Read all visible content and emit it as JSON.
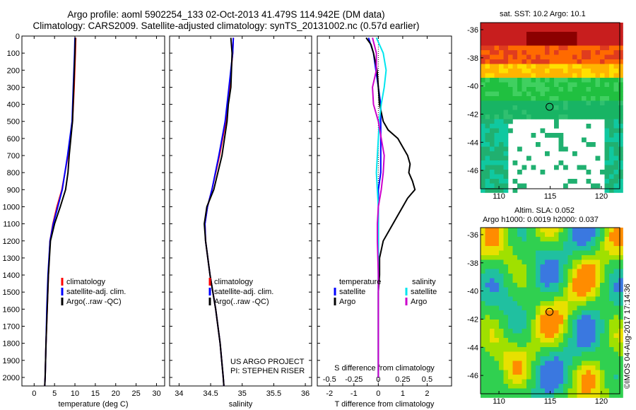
{
  "header": {
    "line1": "Argo profile: aoml 5902254_133 02-Oct-2013 41.479S 114.942E (DM data)",
    "line2": "Climatology: CARS2009. Satellite-adjusted climatology: synTS_20131002.nc (0.57d earlier)"
  },
  "credit": {
    "line1": "US ARGO PROJECT",
    "line2": "PI: STEPHEN RISER"
  },
  "imos_stamp": "©IMOS 04-Aug-2017 17:14:36",
  "map_titles": {
    "sst": "sat. SST: 10.2 Argo: 10.1",
    "sla_line1": "Altim. SLA: 0.052",
    "sla_line2": "Argo h1000: 0.0019 h2000: 0.037"
  },
  "colors": {
    "climatology": "#ff0000",
    "satellite": "#0000ff",
    "argo": "#000000",
    "sal_satellite": "#00e5ee",
    "sal_argo": "#cc00cc"
  },
  "chart_data": [
    {
      "type": "line",
      "id": "temperature",
      "xlabel": "temperature (deg C)",
      "ylabel": "",
      "xlim": [
        -3,
        32
      ],
      "xticks": [
        0,
        5,
        10,
        15,
        20,
        25,
        30
      ],
      "ylim": [
        2050,
        0
      ],
      "yticks": [
        0,
        100,
        200,
        300,
        400,
        500,
        600,
        700,
        800,
        900,
        1000,
        1100,
        1200,
        1300,
        1400,
        1500,
        1600,
        1700,
        1800,
        1900,
        2000
      ],
      "legend": [
        "climatology",
        "satellite-adj. clim.",
        "Argo(..raw -QC)"
      ],
      "series": [
        {
          "name": "climatology",
          "color": "#ff0000",
          "depth": [
            10,
            100,
            300,
            500,
            700,
            900,
            1000,
            1100,
            1200,
            1400,
            1600,
            1800,
            2000,
            2050
          ],
          "values": [
            10.2,
            10.1,
            9.8,
            9.4,
            8.3,
            6.8,
            5.6,
            4.6,
            3.9,
            3.5,
            3.2,
            2.9,
            2.7,
            2.6
          ]
        },
        {
          "name": "satellite-adj. clim.",
          "color": "#0000ff",
          "depth": [
            10,
            100,
            300,
            500,
            700,
            900,
            1000,
            1100,
            1200,
            1400,
            1600,
            1800,
            2000,
            2050
          ],
          "values": [
            10.0,
            9.9,
            9.6,
            9.3,
            8.2,
            6.9,
            5.8,
            4.7,
            3.9,
            3.4,
            3.1,
            2.9,
            2.7,
            2.6
          ]
        },
        {
          "name": "Argo(..raw -QC)",
          "color": "#000000",
          "depth": [
            10,
            100,
            300,
            500,
            700,
            800,
            900,
            1000,
            1100,
            1200,
            1400,
            1600,
            1800,
            2000,
            2050
          ],
          "values": [
            10.1,
            10.0,
            9.7,
            9.4,
            8.6,
            8.3,
            7.7,
            6.4,
            5.0,
            4.0,
            3.5,
            3.2,
            2.9,
            2.7,
            2.6
          ]
        }
      ]
    },
    {
      "type": "line",
      "id": "salinity",
      "xlabel": "salinity",
      "ylabel": "",
      "xlim": [
        33.85,
        36.1
      ],
      "xticks": [
        34,
        34.5,
        35,
        35.5,
        36
      ],
      "ylim": [
        2050,
        0
      ],
      "legend": [
        "climatology",
        "satellite-adj. clim.",
        "Argo(..raw -QC)"
      ],
      "series": [
        {
          "name": "climatology",
          "color": "#ff0000",
          "depth": [
            10,
            100,
            300,
            500,
            700,
            900,
            1000,
            1100,
            1200,
            1400,
            1600,
            1800,
            2000,
            2050
          ],
          "values": [
            34.86,
            34.85,
            34.8,
            34.74,
            34.64,
            34.52,
            34.45,
            34.41,
            34.42,
            34.49,
            34.58,
            34.65,
            34.7,
            34.71
          ]
        },
        {
          "name": "satellite-adj. clim.",
          "color": "#0000ff",
          "depth": [
            10,
            100,
            300,
            500,
            700,
            900,
            1000,
            1100,
            1200,
            1400,
            1600,
            1800,
            2000,
            2050
          ],
          "values": [
            34.86,
            34.85,
            34.79,
            34.73,
            34.63,
            34.52,
            34.45,
            34.41,
            34.42,
            34.49,
            34.58,
            34.65,
            34.7,
            34.71
          ]
        },
        {
          "name": "Argo(..raw -QC)",
          "color": "#000000",
          "depth": [
            10,
            100,
            300,
            400,
            500,
            700,
            900,
            1000,
            1100,
            1200,
            1400,
            1600,
            1800,
            2000,
            2050
          ],
          "values": [
            34.82,
            34.84,
            34.82,
            34.78,
            34.76,
            34.68,
            34.55,
            34.44,
            34.4,
            34.42,
            34.49,
            34.58,
            34.65,
            34.7,
            34.71
          ]
        }
      ]
    },
    {
      "type": "line",
      "id": "differences",
      "xlabel": "T difference from climatology",
      "xlabel_top": "S difference from climatology",
      "ylabel": "",
      "xlim": [
        -2.5,
        3
      ],
      "xticks": [
        -2,
        -1,
        0,
        1,
        2
      ],
      "sxticks": [
        -0.5,
        -0.25,
        0,
        0.25,
        0.5
      ],
      "sxticklabels": [
        "-0.5",
        "-0.25",
        "0",
        "0.25",
        "0.5"
      ],
      "ylim": [
        2050,
        0
      ],
      "legend_left": [
        "temperature",
        "satellite",
        "Argo"
      ],
      "legend_right": [
        "salinity",
        "satellite",
        "Argo"
      ],
      "series": [
        {
          "name": "temperature satellite",
          "color": "#0000ff",
          "depth": [
            10,
            100,
            200,
            300,
            400,
            500,
            600,
            700,
            800,
            900,
            1000,
            1100,
            1200,
            1400,
            1600,
            1800,
            2000
          ],
          "values": [
            -0.4,
            -0.2,
            -0.1,
            0.0,
            0.1,
            0.1,
            0.1,
            0.1,
            0.1,
            0.0,
            0.0,
            0.0,
            0.0,
            0.0,
            0.0,
            0.0,
            0.0
          ]
        },
        {
          "name": "temperature Argo",
          "color": "#000000",
          "depth": [
            10,
            50,
            100,
            200,
            300,
            400,
            500,
            550,
            600,
            650,
            700,
            750,
            800,
            850,
            900,
            950,
            1000,
            1050,
            1100,
            1200,
            1300,
            1400,
            1500,
            1600,
            1700,
            1800,
            1900,
            2000
          ],
          "values": [
            -0.5,
            -0.3,
            -0.2,
            -0.05,
            0.0,
            0.05,
            0.2,
            0.4,
            0.8,
            1.0,
            1.2,
            1.3,
            1.25,
            1.4,
            1.5,
            1.2,
            1.0,
            0.8,
            0.6,
            0.2,
            0.05,
            0.05,
            0.0,
            0.0,
            0.0,
            0.0,
            0.0,
            0.0
          ]
        },
        {
          "name": "salinity satellite",
          "color": "#00e5ee",
          "depth": [
            10,
            100,
            200,
            300,
            400,
            500,
            600,
            700,
            800,
            900,
            1000,
            1100,
            1200,
            1400,
            1600,
            1800,
            2000
          ],
          "values": [
            -0.02,
            0.05,
            0.08,
            0.06,
            0.03,
            0.01,
            0.0,
            -0.01,
            -0.02,
            -0.01,
            0.0,
            0.0,
            0.0,
            0.0,
            0.0,
            0.0,
            0.0
          ]
        },
        {
          "name": "salinity Argo",
          "color": "#cc00cc",
          "depth": [
            10,
            100,
            200,
            300,
            400,
            500,
            600,
            700,
            800,
            900,
            1000,
            1100,
            1200,
            1400,
            1600,
            1800,
            2000
          ],
          "values": [
            -0.06,
            -0.02,
            -0.02,
            -0.06,
            -0.05,
            0.0,
            0.03,
            0.06,
            0.05,
            0.03,
            0.0,
            -0.01,
            -0.01,
            0.0,
            0.0,
            0.0,
            0.0
          ]
        }
      ]
    },
    {
      "type": "heatmap",
      "id": "sst-map",
      "title": "sat. SST: 10.2 Argo: 10.1",
      "xticks": [
        110,
        115,
        120
      ],
      "yticks": [
        -36,
        -38,
        -40,
        -42,
        -44,
        -46
      ],
      "xlim": [
        108.2,
        121.8
      ],
      "ylim": [
        -47.3,
        -35.5
      ],
      "marker": {
        "lon": 114.942,
        "lat": -41.479
      }
    },
    {
      "type": "heatmap",
      "id": "sla-map",
      "title": "Altim. SLA: 0.052",
      "subtitle": "Argo h1000: 0.0019 h2000: 0.037",
      "xticks": [
        110,
        115,
        120
      ],
      "yticks": [
        -36,
        -38,
        -40,
        -42,
        -44,
        -46
      ],
      "xlim": [
        108.2,
        121.8
      ],
      "ylim": [
        -47.3,
        -35.5
      ],
      "marker": {
        "lon": 114.942,
        "lat": -41.479
      }
    }
  ]
}
